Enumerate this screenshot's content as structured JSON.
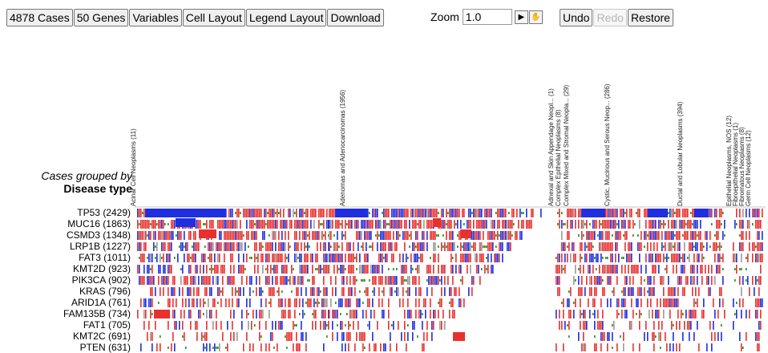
{
  "toolbar": {
    "cases": "4878 Cases",
    "genes": "50 Genes",
    "variables": "Variables",
    "cell_layout": "Cell Layout",
    "legend_layout": "Legend Layout",
    "download": "Download"
  },
  "zoom": {
    "label": "Zoom",
    "value": "1.0"
  },
  "history": {
    "undo": "Undo",
    "redo": "Redo",
    "restore": "Restore"
  },
  "grouping": {
    "line1": "Cases grouped by",
    "line2": "Disease type"
  },
  "genes": [
    "TP53 (2429)",
    "MUC16 (1863)",
    "CSMD3 (1348)",
    "LRP1B (1227)",
    "FAT3 (1011)",
    "KMT2D (923)",
    "PIK3CA (902)",
    "KRAS (796)",
    "ARID1A (761)",
    "FAM135B (734)",
    "FAT1 (705)",
    "KMT2C (691)",
    "PTEN (631)"
  ],
  "groups": [
    {
      "label": "Acinar Cell Neoplasms (11)"
    },
    {
      "label": "Adenomas and Adenocarcinomas (1956)"
    },
    {
      "label": "Adnexal and Skin Appendage Neopl... (1)"
    },
    {
      "label": "Complex Epithelial Neoplasms (8)"
    },
    {
      "label": "Complex Mixed and Stromal Neopla... (29)"
    },
    {
      "label": "Cystic, Mucinous and Serous Neop... (286)"
    },
    {
      "label": "Ductal and Lobular Neoplasms (394)"
    },
    {
      "label": "Epithelial Neoplasms, NOS (12)"
    },
    {
      "label": "Fibroepithelial Neoplasms (1)"
    },
    {
      "label": "Fibromatous Neoplasms (8)"
    },
    {
      "label": "Germ Cell Neoplasms (12)"
    }
  ],
  "colors": {
    "missense": "#e8312e",
    "truncation": "#1f2fe0",
    "splice": "#2a8a1c",
    "other": "#9a9a9a"
  }
}
